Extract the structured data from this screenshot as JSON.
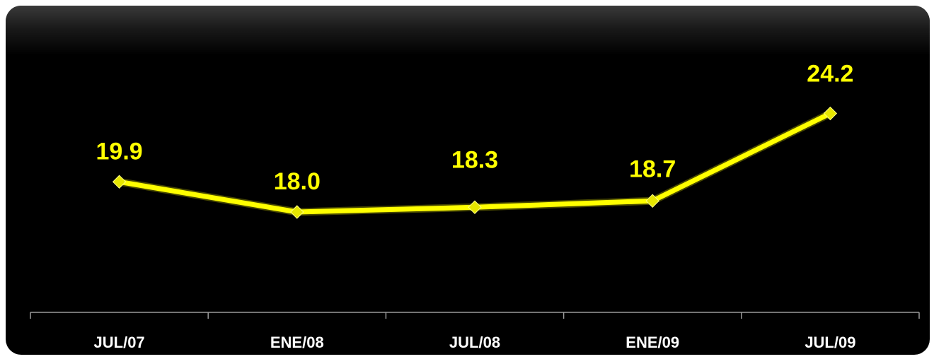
{
  "chart_data": {
    "type": "line",
    "categories": [
      "JUL/07",
      "ENE/08",
      "JUL/08",
      "ENE/09",
      "JUL/09"
    ],
    "values": [
      19.9,
      18.0,
      18.3,
      18.7,
      24.2
    ],
    "data_labels": [
      "19.9",
      "18.0",
      "18.3",
      "18.7",
      "24.2"
    ],
    "title": "",
    "xlabel": "",
    "ylabel": "",
    "ylim": [
      12,
      26
    ],
    "grid": false,
    "legend": "none",
    "colors": {
      "line": "#ffff00",
      "marker": "#e6e600",
      "axis": "#9a9a9a",
      "tick_text": "#ffffff",
      "background": "#000000"
    }
  }
}
